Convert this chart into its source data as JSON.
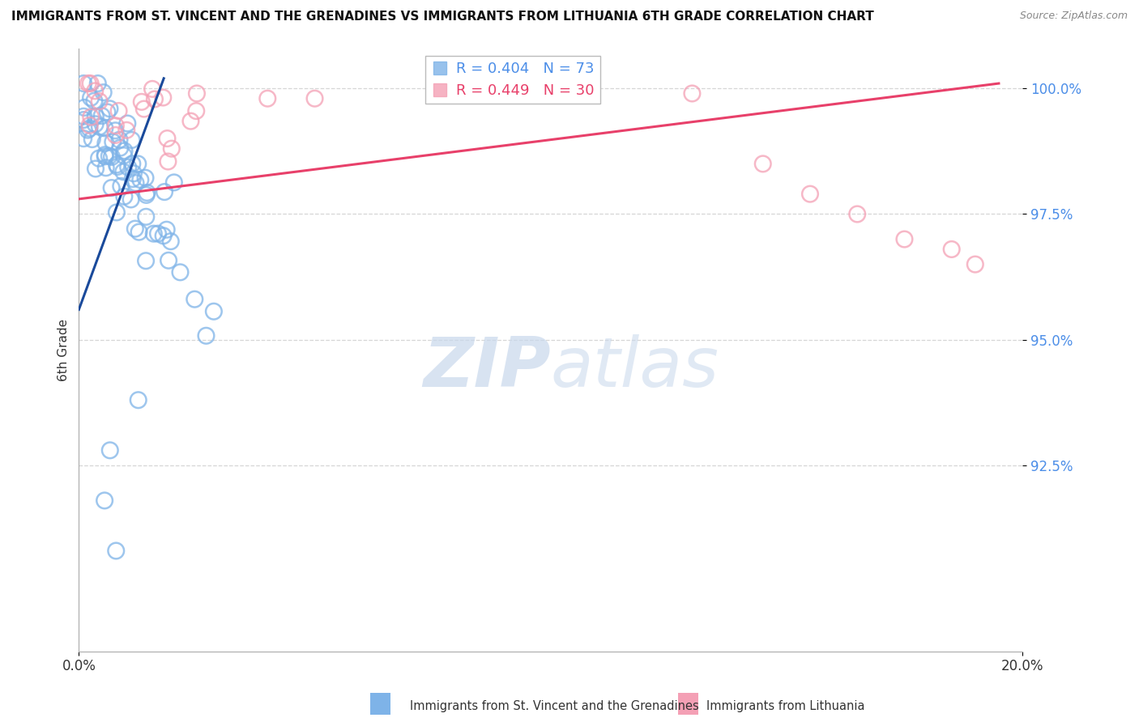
{
  "title": "IMMIGRANTS FROM ST. VINCENT AND THE GRENADINES VS IMMIGRANTS FROM LITHUANIA 6TH GRADE CORRELATION CHART",
  "source": "Source: ZipAtlas.com",
  "ylabel": "6th Grade",
  "xlim": [
    0.0,
    0.2
  ],
  "ylim": [
    0.888,
    1.008
  ],
  "ytick_vals": [
    0.925,
    0.95,
    0.975,
    1.0
  ],
  "ytick_labels": [
    "92.5%",
    "95.0%",
    "97.5%",
    "100.0%"
  ],
  "xtick_vals": [
    0.0,
    0.2
  ],
  "xtick_labels": [
    "0.0%",
    "20.0%"
  ],
  "blue_label": "Immigrants from St. Vincent and the Grenadines",
  "pink_label": "Immigrants from Lithuania",
  "blue_r": 0.404,
  "blue_n": 73,
  "pink_r": 0.449,
  "pink_n": 30,
  "blue_color": "#7EB3E8",
  "pink_color": "#F4A0B5",
  "blue_line_color": "#1A4A9B",
  "pink_line_color": "#E8406A",
  "watermark_zip": "ZIP",
  "watermark_atlas": "atlas",
  "background_color": "#ffffff",
  "blue_line_x0": 0.0,
  "blue_line_x1": 0.018,
  "blue_line_y0": 0.956,
  "blue_line_y1": 1.002,
  "pink_line_x0": 0.0,
  "pink_line_x1": 0.195,
  "pink_line_y0": 0.978,
  "pink_line_y1": 1.001
}
